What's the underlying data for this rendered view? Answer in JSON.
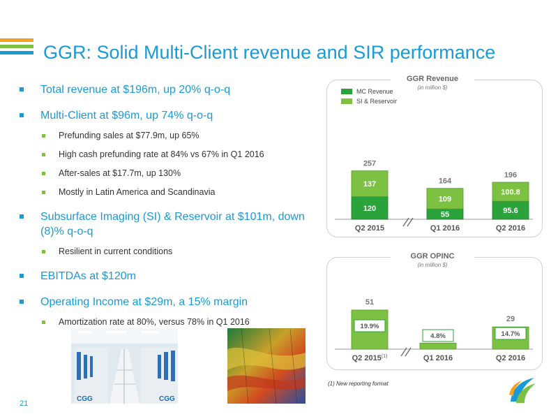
{
  "title": "GGR: Solid Multi-Client revenue and SIR performance",
  "colors": {
    "accent": "#1a9ad6",
    "mc_green": "#2aa33a",
    "sir_green": "#7cc142"
  },
  "bullets": [
    {
      "text": "Total revenue at $196m, up 20% q-o-q",
      "sub": []
    },
    {
      "text": "Multi-Client at $96m, up 74% q-o-q",
      "sub": [
        "Prefunding sales at $77.9m, up 65%",
        "High cash prefunding rate at 84% vs 67% in Q1 2016",
        "After-sales at $17.7m, up 130%",
        "Mostly in Latin America and Scandinavia"
      ]
    },
    {
      "text": "Subsurface Imaging (SI) & Reservoir at $101m, down (8)% q-o-q",
      "sub": [
        "Resilient in current conditions"
      ]
    },
    {
      "text": "EBITDAs at $120m",
      "sub": []
    },
    {
      "text": "Operating Income at $29m, a 15% margin",
      "sub": [
        "Amortization rate at 80%, versus 78% in Q1 2016"
      ]
    }
  ],
  "photos": {
    "left_logo_text": "CGG",
    "left_logo_text2": "CGG"
  },
  "chart_data": [
    {
      "type": "bar",
      "title": "GGR Revenue",
      "subtitle": "(in million $)",
      "categories": [
        "Q2 2015",
        "Q1 2016",
        "Q2 2016"
      ],
      "series": [
        {
          "name": "MC Revenue",
          "values": [
            120,
            55,
            95.6
          ],
          "labels": [
            "120",
            "55",
            "95.6"
          ]
        },
        {
          "name": "SI & Reservoir",
          "values": [
            137,
            109,
            100.8
          ],
          "labels": [
            "137",
            "109",
            "100.8"
          ]
        }
      ],
      "totals": [
        "257",
        "164",
        "196"
      ],
      "stacked": true,
      "legend": "top-left",
      "axis_break": "between Q2 2015 and Q1 2016"
    },
    {
      "type": "bar",
      "title": "GGR OPINC",
      "subtitle": "(in million $)",
      "categories": [
        "Q2 2015",
        "Q1 2016",
        "Q2 2016"
      ],
      "category_suffixes": [
        "(1)",
        "",
        ""
      ],
      "values": [
        51,
        8,
        29
      ],
      "labels": [
        "51",
        "8",
        "29"
      ],
      "margins": [
        "19.9%",
        "4.8%",
        "14.7%"
      ],
      "axis_break": "between Q2 2015 and Q1 2016"
    }
  ],
  "footnote": "(1) New reporting format",
  "page_number": "21"
}
